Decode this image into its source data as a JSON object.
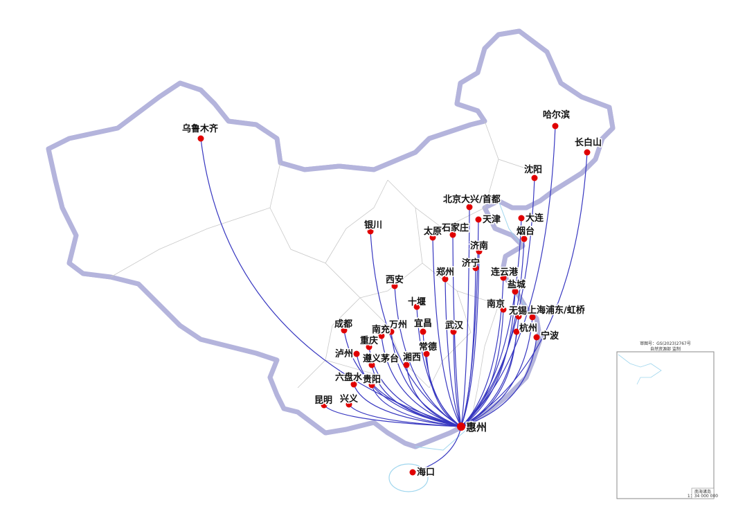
{
  "map": {
    "hub": "惠州",
    "cities": [
      "乌鲁木齐",
      "哈尔滨",
      "长白山",
      "沈阳",
      "北京大兴/首都",
      "天津",
      "大连",
      "烟台",
      "银川",
      "太原",
      "石家庄",
      "济南",
      "济宁",
      "郑州",
      "连云港",
      "盐城",
      "西安",
      "十堰",
      "南京",
      "无锡",
      "上海浦东/虹桥",
      "宜昌",
      "武汉",
      "杭州",
      "宁波",
      "成都",
      "万州",
      "南充",
      "重庆",
      "常德",
      "泸州",
      "遵义茅台",
      "湘西",
      "六盘水",
      "贵阳",
      "昆明",
      "兴义",
      "海口"
    ],
    "colors": {
      "route": "#3636c0",
      "dot": "#e00000",
      "border": "#a8a8d8",
      "province": "#c8c8c8",
      "water": "#9fd6ee"
    }
  },
  "inset": {
    "approval": "审图号：GS(2023)2767号",
    "producer": "自然资源部 监制",
    "title": "南海诸岛",
    "scale": "1：34 000 000"
  }
}
